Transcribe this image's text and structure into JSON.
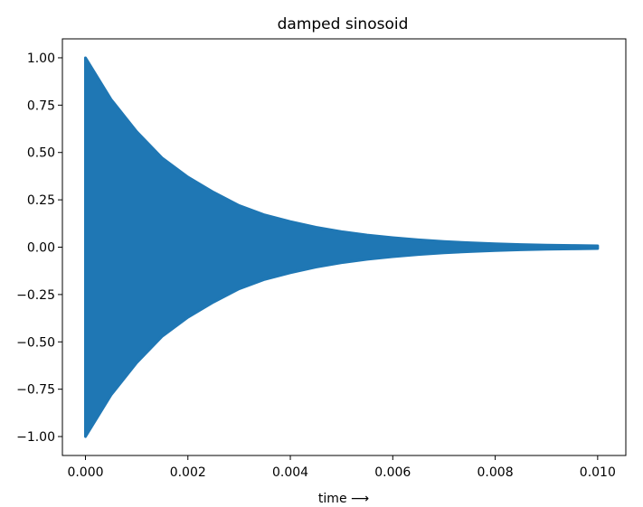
{
  "chart_data": {
    "type": "line",
    "title": "damped sinosoid",
    "xlabel": "time ⟶",
    "ylabel": "",
    "xlim": [
      -0.00045,
      0.00055
    ],
    "ylim": [
      -1.1,
      1.1
    ],
    "x_ticks": [
      0.0,
      0.002,
      0.004,
      0.006,
      0.008,
      0.01
    ],
    "x_tick_labels": [
      "0.000",
      "0.002",
      "0.004",
      "0.006",
      "0.008",
      "0.010"
    ],
    "y_ticks": [
      1.0,
      0.75,
      0.5,
      0.25,
      0.0,
      -0.25,
      -0.5,
      -0.75,
      -1.0
    ],
    "y_tick_labels": [
      "1.00",
      "0.75",
      "0.50",
      "0.25",
      "0.00",
      "−0.25",
      "−0.50",
      "−0.75",
      "−1.00"
    ],
    "grid": false,
    "series": [
      {
        "color": "#1f77b4",
        "envelope": {
          "x": [
            0.0,
            0.0005,
            0.001,
            0.0015,
            0.002,
            0.0025,
            0.003,
            0.0035,
            0.004,
            0.0045,
            0.005,
            0.0055,
            0.006,
            0.0065,
            0.007,
            0.0075,
            0.008,
            0.0085,
            0.009,
            0.0095,
            0.01
          ],
          "y": [
            1.0,
            0.78,
            0.61,
            0.47,
            0.37,
            0.29,
            0.22,
            0.17,
            0.135,
            0.105,
            0.082,
            0.064,
            0.05,
            0.039,
            0.03,
            0.023,
            0.018,
            0.014,
            0.011,
            0.009,
            0.007
          ]
        }
      }
    ]
  }
}
